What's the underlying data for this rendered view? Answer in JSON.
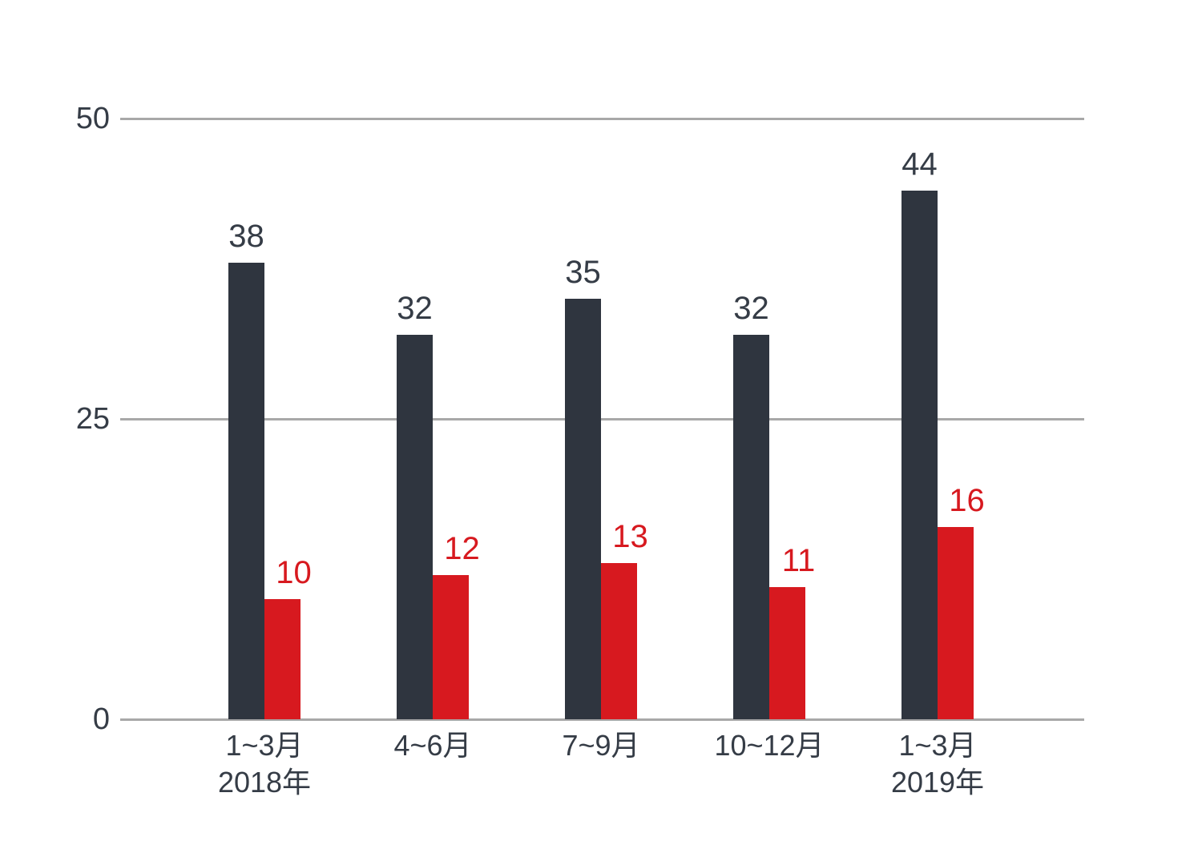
{
  "chart_data": {
    "type": "bar",
    "categories": [
      {
        "label": "1~3月",
        "sublabel": "2018年"
      },
      {
        "label": "4~6月",
        "sublabel": ""
      },
      {
        "label": "7~9月",
        "sublabel": ""
      },
      {
        "label": "10~12月",
        "sublabel": ""
      },
      {
        "label": "1~3月",
        "sublabel": "2019年"
      }
    ],
    "series": [
      {
        "name": "dark",
        "color": "#2f353f",
        "label_color": "#353c46",
        "values": [
          38,
          32,
          35,
          32,
          44
        ]
      },
      {
        "name": "red",
        "color": "#d7191f",
        "label_color": "#d7191f",
        "values": [
          10,
          12,
          13,
          11,
          16
        ]
      }
    ],
    "yticks": [
      0,
      25,
      50
    ],
    "ytick_labels": [
      "0",
      "25",
      "50"
    ],
    "ylim": [
      0,
      50
    ],
    "grid": true,
    "legend": false,
    "title": "",
    "xlabel": "",
    "ylabel": ""
  },
  "colors": {
    "background": "#ffffff",
    "gridline": "#a8a8a8",
    "axis_text": "#353c46"
  }
}
